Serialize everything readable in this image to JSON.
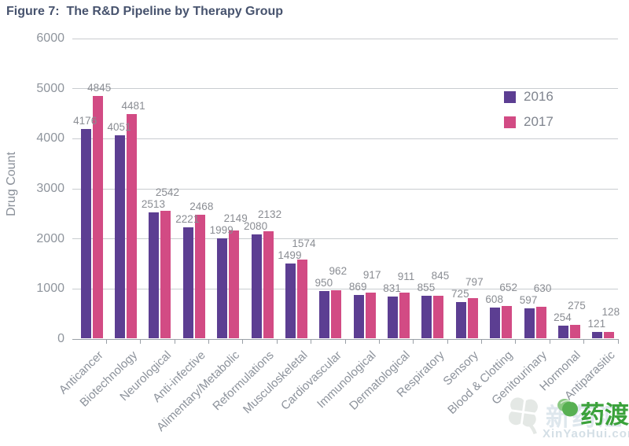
{
  "chart_data": {
    "type": "bar",
    "title": "Figure 7:  The R&D Pipeline by Therapy Group",
    "ylabel": "Drug Count",
    "xlabel": "",
    "ylim": [
      0,
      6000
    ],
    "yticks": [
      0,
      1000,
      2000,
      3000,
      4000,
      5000,
      6000
    ],
    "grid": true,
    "legend_position": "top-right-inside",
    "categories": [
      "Anticancer",
      "Biotechnology",
      "Neurological",
      "Anti-infective",
      "Alimentary/Metabolic",
      "Reformulations",
      "Musculoskeletal",
      "Cardiovascular",
      "Immunological",
      "Dermatological",
      "Respiratory",
      "Sensory",
      "Blood & Clotting",
      "Genitourinary",
      "Hormonal",
      "Antiparasitic"
    ],
    "series": [
      {
        "name": "2016",
        "color": "#5c3e92",
        "values": [
          4176,
          4051,
          2513,
          2221,
          1999,
          2080,
          1499,
          950,
          869,
          831,
          855,
          725,
          608,
          597,
          254,
          121
        ]
      },
      {
        "name": "2017",
        "color": "#d24b84",
        "values": [
          4845,
          4481,
          2542,
          2468,
          2149,
          2132,
          1574,
          962,
          917,
          911,
          845,
          797,
          652,
          630,
          275,
          128
        ]
      }
    ]
  },
  "watermark": {
    "faint_text": "新药汇",
    "brand_text": "药渡",
    "domain_text": "XinYaoHui.com",
    "brand_color": "#3ba23b"
  },
  "colors": {
    "title": "#47536e",
    "axis_text": "#8f959d",
    "value_label": "#8a8d93",
    "gridline": "#c9ccd0",
    "axis_line": "#9aa0a7",
    "background": "#ffffff"
  }
}
